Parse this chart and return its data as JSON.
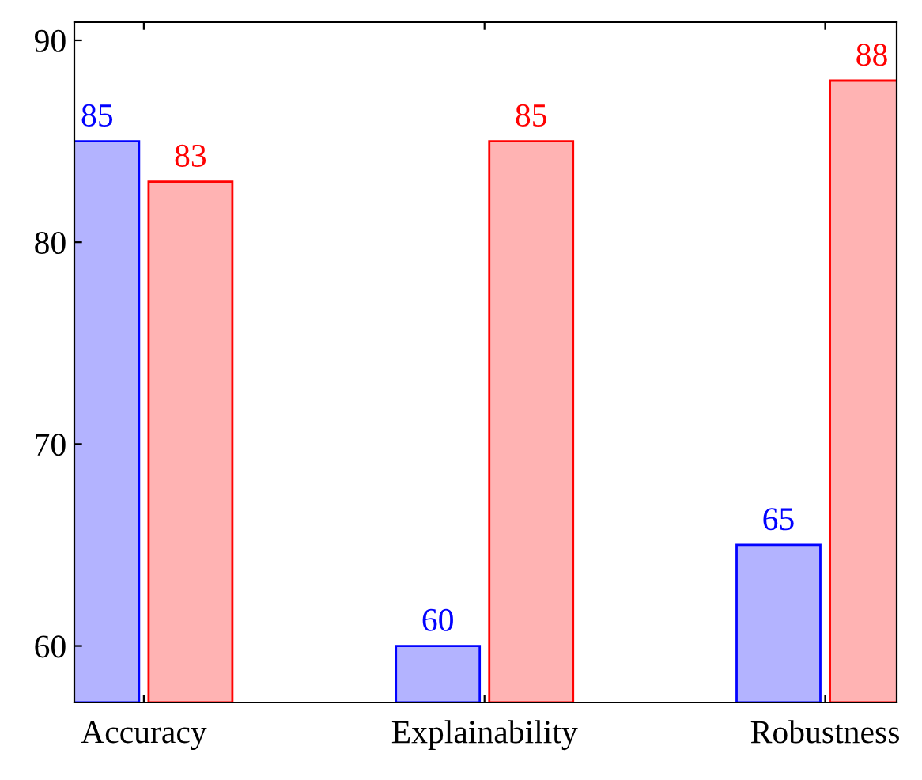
{
  "chart_data": {
    "type": "bar",
    "categories": [
      "Accuracy",
      "Explainability",
      "Robustness"
    ],
    "series": [
      {
        "color": "#b3b3ff",
        "values": [
          85,
          60,
          65
        ]
      },
      {
        "color": "#ffb3b3",
        "values": [
          83,
          85,
          88
        ]
      }
    ],
    "ylim": [
      57.2,
      90.9
    ],
    "yticks": [
      60,
      70,
      80,
      90
    ],
    "data_labels": true,
    "grid": false,
    "legend": false
  }
}
